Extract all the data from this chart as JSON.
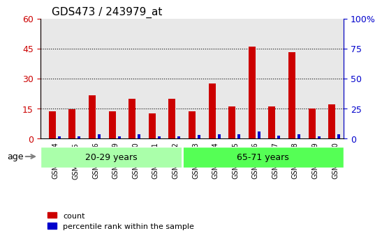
{
  "title": "GDS473 / 243979_at",
  "samples": [
    "GSM10354",
    "GSM10355",
    "GSM10356",
    "GSM10359",
    "GSM10360",
    "GSM10361",
    "GSM10362",
    "GSM10363",
    "GSM10364",
    "GSM10365",
    "GSM10366",
    "GSM10367",
    "GSM10368",
    "GSM10369",
    "GSM10370"
  ],
  "count_values": [
    13.5,
    14.5,
    21.5,
    13.5,
    20.0,
    12.5,
    20.0,
    13.5,
    27.5,
    16.0,
    46.0,
    16.0,
    43.0,
    15.0,
    17.0
  ],
  "percentile_values": [
    2.0,
    2.0,
    3.5,
    2.0,
    3.5,
    2.0,
    2.0,
    3.0,
    3.5,
    3.5,
    6.0,
    2.5,
    3.5,
    2.0,
    3.5
  ],
  "groups": [
    {
      "label": "20-29 years",
      "start": 0,
      "end": 7,
      "color": "#aaffaa"
    },
    {
      "label": "65-71 years",
      "start": 7,
      "end": 15,
      "color": "#55ff55"
    }
  ],
  "age_label": "age",
  "ylim_left": [
    0,
    60
  ],
  "ylim_right": [
    0,
    100
  ],
  "yticks_left": [
    0,
    15,
    30,
    45,
    60
  ],
  "ytick_labels_left": [
    "0",
    "15",
    "30",
    "45",
    "60"
  ],
  "yticks_right": [
    0,
    25,
    50,
    75,
    100
  ],
  "ytick_labels_right": [
    "0",
    "25",
    "50",
    "75",
    "100%"
  ],
  "bar_color_count": "#cc0000",
  "bar_color_pct": "#0000cc",
  "bar_width": 0.35,
  "background_plot": "#e8e8e8",
  "background_group": "#bbffbb",
  "dotted_yticks": [
    15,
    30,
    45
  ],
  "legend_count_label": "count",
  "legend_pct_label": "percentile rank within the sample"
}
